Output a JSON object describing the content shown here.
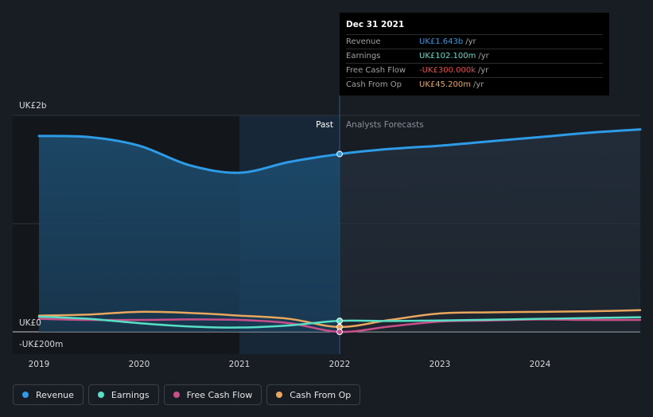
{
  "chart_data": {
    "type": "line",
    "x_ticks": [
      "2019",
      "2020",
      "2021",
      "2022",
      "2023",
      "2024"
    ],
    "y_axis": {
      "top_label": "UK£2b",
      "zero_label": "UK£0",
      "bottom_label": "-UK£200m",
      "ylim": [
        -200,
        2000
      ],
      "unit": "UK£m"
    },
    "regions": {
      "past_label": "Past",
      "forecast_label": "Analysts Forecasts",
      "split_x": 2022.0
    },
    "series": [
      {
        "name": "Revenue",
        "color": "#2d9be6",
        "points": [
          [
            2019.0,
            1810
          ],
          [
            2019.5,
            1800
          ],
          [
            2020.0,
            1720
          ],
          [
            2020.5,
            1540
          ],
          [
            2021.0,
            1470
          ],
          [
            2021.5,
            1570
          ],
          [
            2022.0,
            1643
          ],
          [
            2022.5,
            1690
          ],
          [
            2023.0,
            1720
          ],
          [
            2023.5,
            1760
          ],
          [
            2024.0,
            1800
          ],
          [
            2024.5,
            1840
          ],
          [
            2025.0,
            1870
          ]
        ]
      },
      {
        "name": "Earnings",
        "color": "#57e0c6",
        "points": [
          [
            2019.0,
            140
          ],
          [
            2019.5,
            120
          ],
          [
            2020.0,
            80
          ],
          [
            2020.5,
            50
          ],
          [
            2021.0,
            40
          ],
          [
            2021.5,
            60
          ],
          [
            2022.0,
            102.1
          ],
          [
            2022.5,
            100
          ],
          [
            2023.0,
            105
          ],
          [
            2023.5,
            112
          ],
          [
            2024.0,
            120
          ],
          [
            2024.5,
            128
          ],
          [
            2025.0,
            135
          ]
        ]
      },
      {
        "name": "Free Cash Flow",
        "color": "#c94f8a",
        "points": [
          [
            2019.0,
            120
          ],
          [
            2019.5,
            110
          ],
          [
            2020.0,
            110
          ],
          [
            2020.5,
            115
          ],
          [
            2021.0,
            110
          ],
          [
            2021.5,
            80
          ],
          [
            2022.0,
            -0.3
          ],
          [
            2022.5,
            50
          ],
          [
            2023.0,
            95
          ],
          [
            2023.5,
            105
          ],
          [
            2024.0,
            115
          ],
          [
            2024.5,
            110
          ],
          [
            2025.0,
            110
          ]
        ]
      },
      {
        "name": "Cash From Op",
        "color": "#e8a75c",
        "points": [
          [
            2019.0,
            150
          ],
          [
            2019.5,
            160
          ],
          [
            2020.0,
            185
          ],
          [
            2020.5,
            175
          ],
          [
            2021.0,
            150
          ],
          [
            2021.5,
            120
          ],
          [
            2022.0,
            45.2
          ],
          [
            2022.5,
            110
          ],
          [
            2023.0,
            170
          ],
          [
            2023.5,
            180
          ],
          [
            2024.0,
            185
          ],
          [
            2024.5,
            190
          ],
          [
            2025.0,
            200
          ]
        ]
      }
    ]
  },
  "tooltip": {
    "date": "Dec 31 2021",
    "rows": [
      {
        "label": "Revenue",
        "value": "UK£1.643b",
        "unit": "/yr",
        "color": "#2d9be6"
      },
      {
        "label": "Earnings",
        "value": "UK£102.100m",
        "unit": "/yr",
        "color": "#57e0c6"
      },
      {
        "label": "Free Cash Flow",
        "value": "-UK£300.000k",
        "unit": "/yr",
        "color": "#e84a4a"
      },
      {
        "label": "Cash From Op",
        "value": "UK£45.200m",
        "unit": "/yr",
        "color": "#e8a75c"
      }
    ]
  },
  "legend": [
    {
      "label": "Revenue",
      "color": "#2d9be6"
    },
    {
      "label": "Earnings",
      "color": "#57e0c6"
    },
    {
      "label": "Free Cash Flow",
      "color": "#c94f8a"
    },
    {
      "label": "Cash From Op",
      "color": "#e8a75c"
    }
  ]
}
